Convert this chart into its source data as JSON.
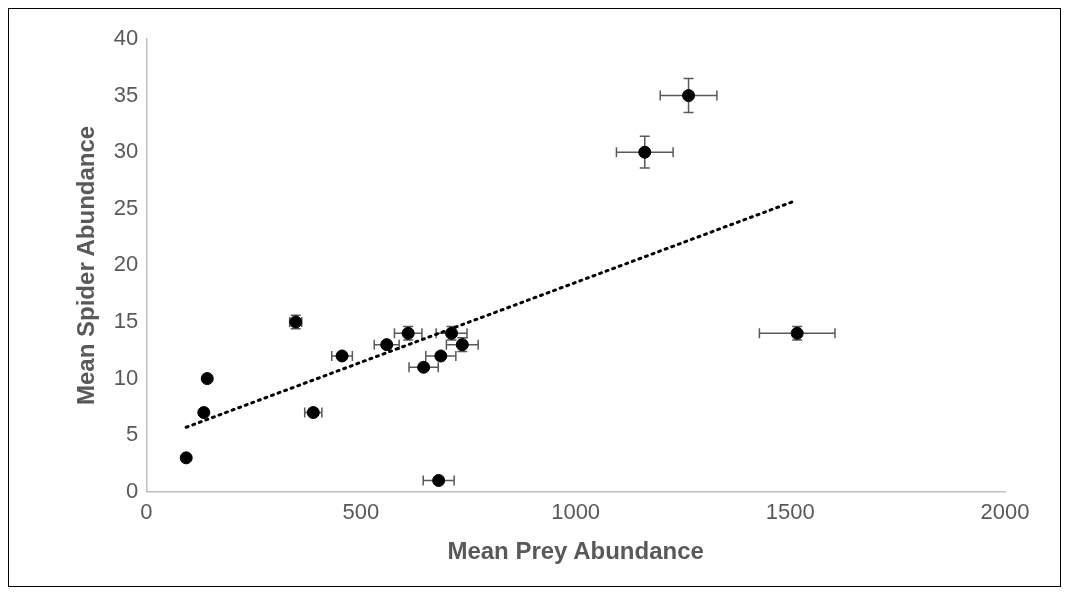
{
  "chart_data": {
    "type": "scatter",
    "xlabel": "Mean Prey Abundance",
    "ylabel": "Mean Spider Abundance",
    "xlim": [
      0,
      2000
    ],
    "xticks": [
      0,
      500,
      1000,
      1500,
      2000
    ],
    "ylim": [
      0,
      40
    ],
    "yticks": [
      0,
      5,
      10,
      15,
      20,
      25,
      30,
      35,
      40
    ],
    "grid": false,
    "legend": false,
    "series": [
      {
        "type": "scatter",
        "color": "#000000",
        "marker": "circle",
        "x": [
          93,
          134,
          142,
          348,
          389,
          456,
          560,
          610,
          646,
          686,
          711,
          736,
          681,
          1161,
          1263,
          1516
        ],
        "values": [
          3,
          7,
          10,
          15,
          7,
          12,
          13,
          14,
          11,
          12,
          14,
          13,
          1,
          30,
          35,
          14
        ],
        "errors": [
          null,
          null,
          null,
          0.6,
          null,
          null,
          null,
          0.6,
          null,
          null,
          0.6,
          0.6,
          null,
          1.4,
          1.5,
          0.6
        ],
        "xerrors": [
          null,
          null,
          null,
          14,
          20,
          24,
          29,
          32,
          34,
          35,
          36,
          37,
          36,
          66,
          66,
          88
        ]
      },
      {
        "type": "line",
        "color": "#000000",
        "marker": "none",
        "line_style": "dotted",
        "x": [
          93,
          1511
        ],
        "values": [
          5.7,
          25.7
        ]
      }
    ]
  }
}
